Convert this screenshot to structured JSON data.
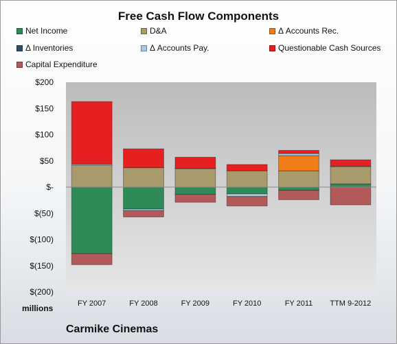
{
  "chart_data": {
    "type": "bar",
    "stacked": true,
    "title": "Free Cash Flow Components",
    "units_label": "millions",
    "company": "Carmike Cinemas",
    "categories": [
      "FY 2007",
      "FY 2008",
      "FY 2009",
      "FY 2010",
      "FY 2011",
      "TTM 9-2012"
    ],
    "ylim": [
      -200,
      200
    ],
    "yticks": [
      {
        "value": 200,
        "label": "$200"
      },
      {
        "value": 150,
        "label": "$150"
      },
      {
        "value": 100,
        "label": "$100"
      },
      {
        "value": 50,
        "label": "$50"
      },
      {
        "value": 0,
        "label": "$-"
      },
      {
        "value": -50,
        "label": "$(50)"
      },
      {
        "value": -100,
        "label": "$(100)"
      },
      {
        "value": -150,
        "label": "$(150)"
      },
      {
        "value": -200,
        "label": "$(200)"
      }
    ],
    "grid": false,
    "legend_position": "top",
    "series": [
      {
        "name": "Net Income",
        "color": "#2e8b57",
        "values": [
          -127,
          -42,
          -14,
          -13,
          -6,
          6
        ]
      },
      {
        "name": "D&A",
        "color": "#a89a6a",
        "values": [
          42,
          37,
          35,
          31,
          31,
          33
        ]
      },
      {
        "name": "Δ Accounts Rec.",
        "color": "#f07d1a",
        "values": [
          0,
          0,
          0,
          0,
          29,
          0
        ]
      },
      {
        "name": "Δ Inventories",
        "color": "#2f4f66",
        "values": [
          0,
          0,
          0,
          0,
          0,
          0
        ]
      },
      {
        "name": "Δ Accounts Pay.",
        "color": "#a8c8e0",
        "values": [
          2,
          -3,
          1,
          -5,
          4,
          1
        ]
      },
      {
        "name": "Questionable Cash Sources",
        "color": "#e62020",
        "values": [
          119,
          36,
          21,
          12,
          6,
          12
        ]
      },
      {
        "name": "Capital Expenditure",
        "color": "#b25a5a",
        "values": [
          -21,
          -12,
          -15,
          -18,
          -18,
          -34
        ]
      }
    ]
  }
}
